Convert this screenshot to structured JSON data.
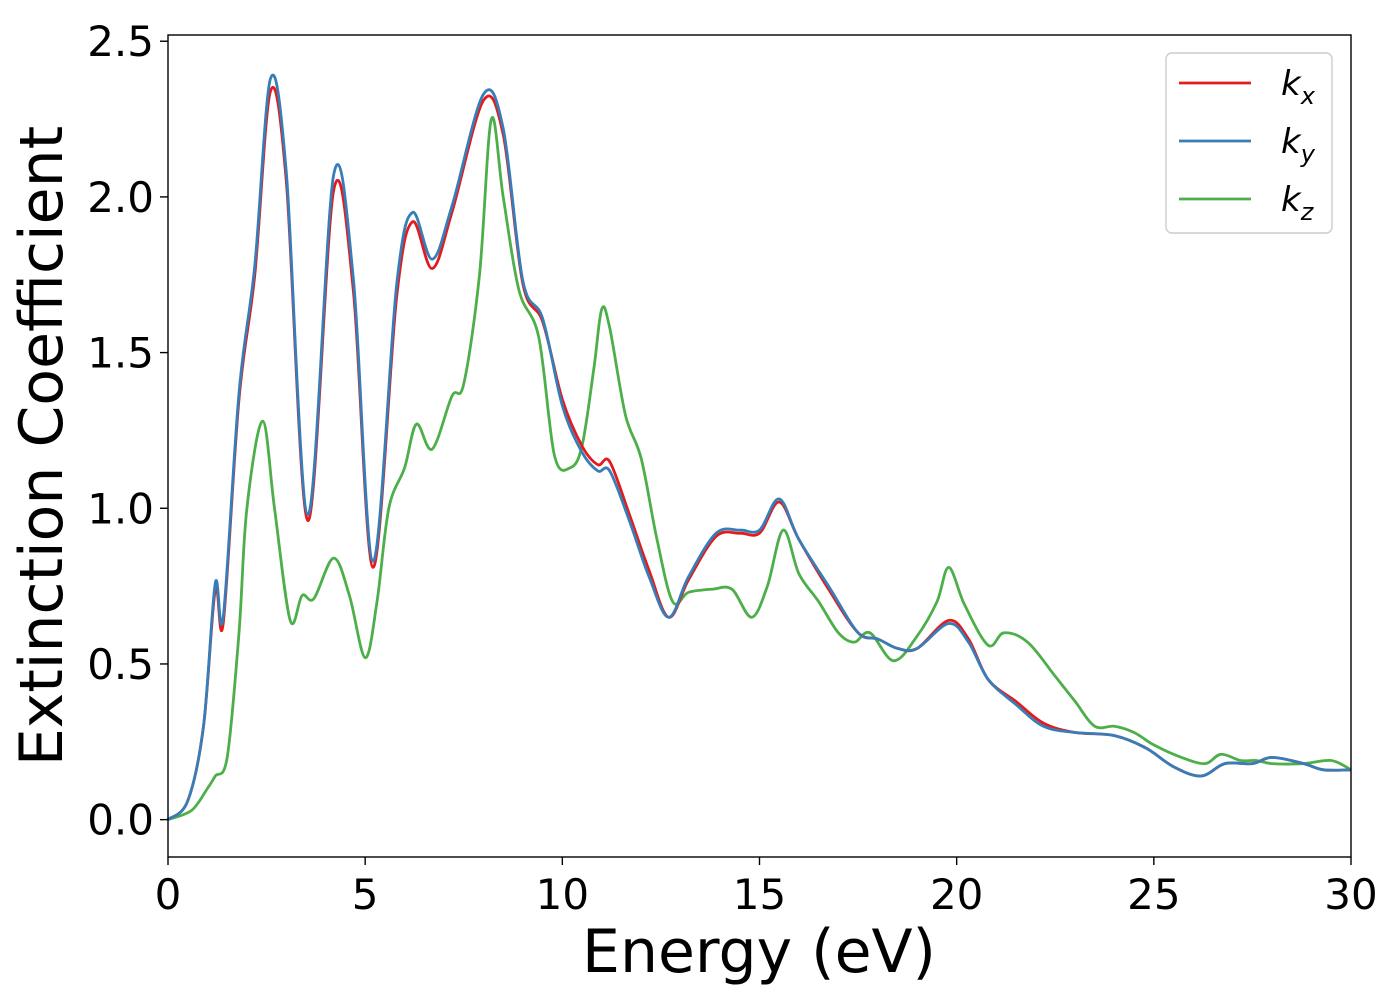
{
  "chart_data": {
    "type": "line",
    "title": "",
    "xlabel": "Energy (eV)",
    "ylabel": "Extinction Coefficient",
    "xlim": [
      0,
      30
    ],
    "ylim": [
      -0.12,
      2.52
    ],
    "xticks": [
      0,
      5,
      10,
      15,
      20,
      25,
      30
    ],
    "xtick_labels": [
      "0",
      "5",
      "10",
      "15",
      "20",
      "25",
      "30"
    ],
    "yticks": [
      0.0,
      0.5,
      1.0,
      1.5,
      2.0,
      2.5
    ],
    "ytick_labels": [
      "0.0",
      "0.5",
      "1.0",
      "1.5",
      "2.0",
      "2.5"
    ],
    "grid": false,
    "legend_position": "top-right",
    "series": [
      {
        "name": "k",
        "subscript": "x",
        "color": "#e41a1c",
        "x": [
          0,
          0.5,
          0.9,
          1.2,
          1.4,
          1.8,
          2.2,
          2.6,
          3.0,
          3.55,
          4.2,
          4.7,
          5.2,
          5.8,
          6.2,
          6.7,
          7.2,
          8.0,
          8.5,
          9.0,
          9.5,
          10.0,
          10.5,
          10.9,
          11.2,
          11.7,
          12.2,
          12.7,
          13.2,
          13.9,
          14.5,
          15.0,
          15.5,
          16.0,
          16.8,
          17.5,
          18.0,
          18.5,
          19.0,
          19.8,
          20.3,
          20.8,
          21.5,
          22.2,
          23.0,
          24.0,
          24.8,
          25.5,
          26.2,
          26.8,
          27.5,
          28.0,
          28.8,
          29.3,
          30.0
        ],
        "y": [
          0.0,
          0.06,
          0.3,
          0.74,
          0.63,
          1.35,
          1.75,
          2.34,
          2.05,
          0.96,
          2.02,
          1.7,
          0.81,
          1.68,
          1.92,
          1.77,
          1.95,
          2.31,
          2.2,
          1.72,
          1.6,
          1.35,
          1.2,
          1.14,
          1.15,
          0.98,
          0.8,
          0.65,
          0.77,
          0.91,
          0.92,
          0.92,
          1.02,
          0.9,
          0.73,
          0.6,
          0.58,
          0.55,
          0.55,
          0.64,
          0.58,
          0.45,
          0.38,
          0.31,
          0.28,
          0.27,
          0.23,
          0.17,
          0.14,
          0.18,
          0.18,
          0.2,
          0.18,
          0.16,
          0.16
        ]
      },
      {
        "name": "k",
        "subscript": "y",
        "color": "#377eb8",
        "x": [
          0,
          0.5,
          0.9,
          1.2,
          1.4,
          1.8,
          2.2,
          2.6,
          3.0,
          3.55,
          4.2,
          4.7,
          5.2,
          5.8,
          6.2,
          6.7,
          7.2,
          8.0,
          8.5,
          9.0,
          9.5,
          10.0,
          10.5,
          10.9,
          11.2,
          11.7,
          12.2,
          12.7,
          13.2,
          13.9,
          14.5,
          15.0,
          15.5,
          16.0,
          16.8,
          17.5,
          18.0,
          18.5,
          19.0,
          19.8,
          20.3,
          20.8,
          21.5,
          22.2,
          23.0,
          24.0,
          24.8,
          25.5,
          26.2,
          26.8,
          27.5,
          28.0,
          28.8,
          29.3,
          30.0
        ],
        "y": [
          0.0,
          0.06,
          0.3,
          0.76,
          0.65,
          1.37,
          1.78,
          2.38,
          2.08,
          0.98,
          2.07,
          1.74,
          0.83,
          1.72,
          1.95,
          1.8,
          1.97,
          2.33,
          2.22,
          1.73,
          1.61,
          1.33,
          1.18,
          1.12,
          1.12,
          0.96,
          0.78,
          0.65,
          0.78,
          0.92,
          0.93,
          0.93,
          1.03,
          0.9,
          0.74,
          0.6,
          0.58,
          0.55,
          0.55,
          0.63,
          0.57,
          0.45,
          0.37,
          0.3,
          0.28,
          0.27,
          0.23,
          0.17,
          0.14,
          0.18,
          0.18,
          0.2,
          0.18,
          0.16,
          0.16
        ]
      },
      {
        "name": "k",
        "subscript": "z",
        "color": "#4daf4a",
        "x": [
          0,
          0.6,
          1.0,
          1.2,
          1.5,
          1.8,
          2.0,
          2.4,
          2.7,
          3.1,
          3.4,
          3.7,
          4.2,
          4.6,
          5.0,
          5.3,
          5.6,
          6.0,
          6.3,
          6.7,
          7.2,
          7.5,
          7.9,
          8.2,
          8.5,
          8.9,
          9.4,
          9.8,
          10.2,
          10.5,
          10.8,
          11.0,
          11.2,
          11.6,
          12.0,
          12.4,
          12.8,
          13.2,
          13.8,
          14.3,
          14.8,
          15.2,
          15.6,
          16.0,
          16.5,
          17.0,
          17.4,
          17.8,
          18.4,
          19.0,
          19.5,
          19.8,
          20.2,
          20.8,
          21.2,
          21.8,
          22.5,
          23.0,
          23.5,
          24.0,
          24.5,
          25.0,
          25.7,
          26.3,
          26.7,
          27.2,
          27.6,
          28.0,
          28.8,
          29.5,
          30.0
        ],
        "y": [
          0.0,
          0.03,
          0.1,
          0.14,
          0.2,
          0.6,
          1.0,
          1.28,
          1.0,
          0.64,
          0.72,
          0.71,
          0.84,
          0.72,
          0.52,
          0.7,
          1.0,
          1.13,
          1.27,
          1.19,
          1.36,
          1.4,
          1.75,
          2.25,
          2.0,
          1.7,
          1.55,
          1.17,
          1.13,
          1.2,
          1.45,
          1.64,
          1.58,
          1.3,
          1.16,
          0.9,
          0.7,
          0.73,
          0.74,
          0.74,
          0.65,
          0.75,
          0.93,
          0.79,
          0.7,
          0.6,
          0.57,
          0.6,
          0.51,
          0.59,
          0.7,
          0.81,
          0.69,
          0.56,
          0.6,
          0.57,
          0.46,
          0.38,
          0.3,
          0.3,
          0.28,
          0.24,
          0.2,
          0.18,
          0.21,
          0.19,
          0.19,
          0.18,
          0.18,
          0.19,
          0.16
        ]
      }
    ]
  }
}
